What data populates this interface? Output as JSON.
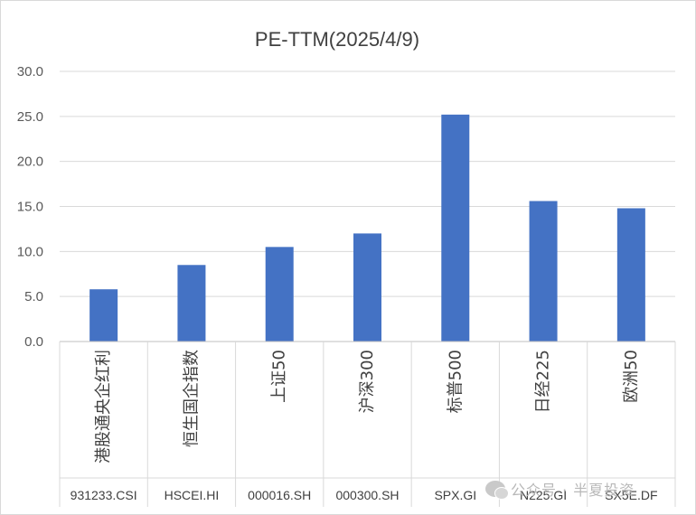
{
  "chart_data": {
    "type": "bar",
    "title": "PE-TTM(2025/4/9)",
    "categories": [
      "港股通央企红利",
      "恒生国企指数",
      "上证50",
      "沪深300",
      "标普500",
      "日经225",
      "欧洲50"
    ],
    "codes": [
      "931233.CSI",
      "HSCEI.HI",
      "000016.SH",
      "000300.SH",
      "SPX.GI",
      "N225.GI",
      "SX5E.DF"
    ],
    "values": [
      5.8,
      8.5,
      10.5,
      12.0,
      25.2,
      15.6,
      14.8
    ],
    "ylim": [
      0,
      30
    ],
    "yticks": [
      "0.0",
      "5.0",
      "10.0",
      "15.0",
      "20.0",
      "25.0",
      "30.0"
    ],
    "grid": true,
    "bar_color": "#4472c4",
    "grid_color": "#d9d9d9",
    "legend": "none"
  },
  "watermark": {
    "text": "公众号 · 半夏投资"
  }
}
